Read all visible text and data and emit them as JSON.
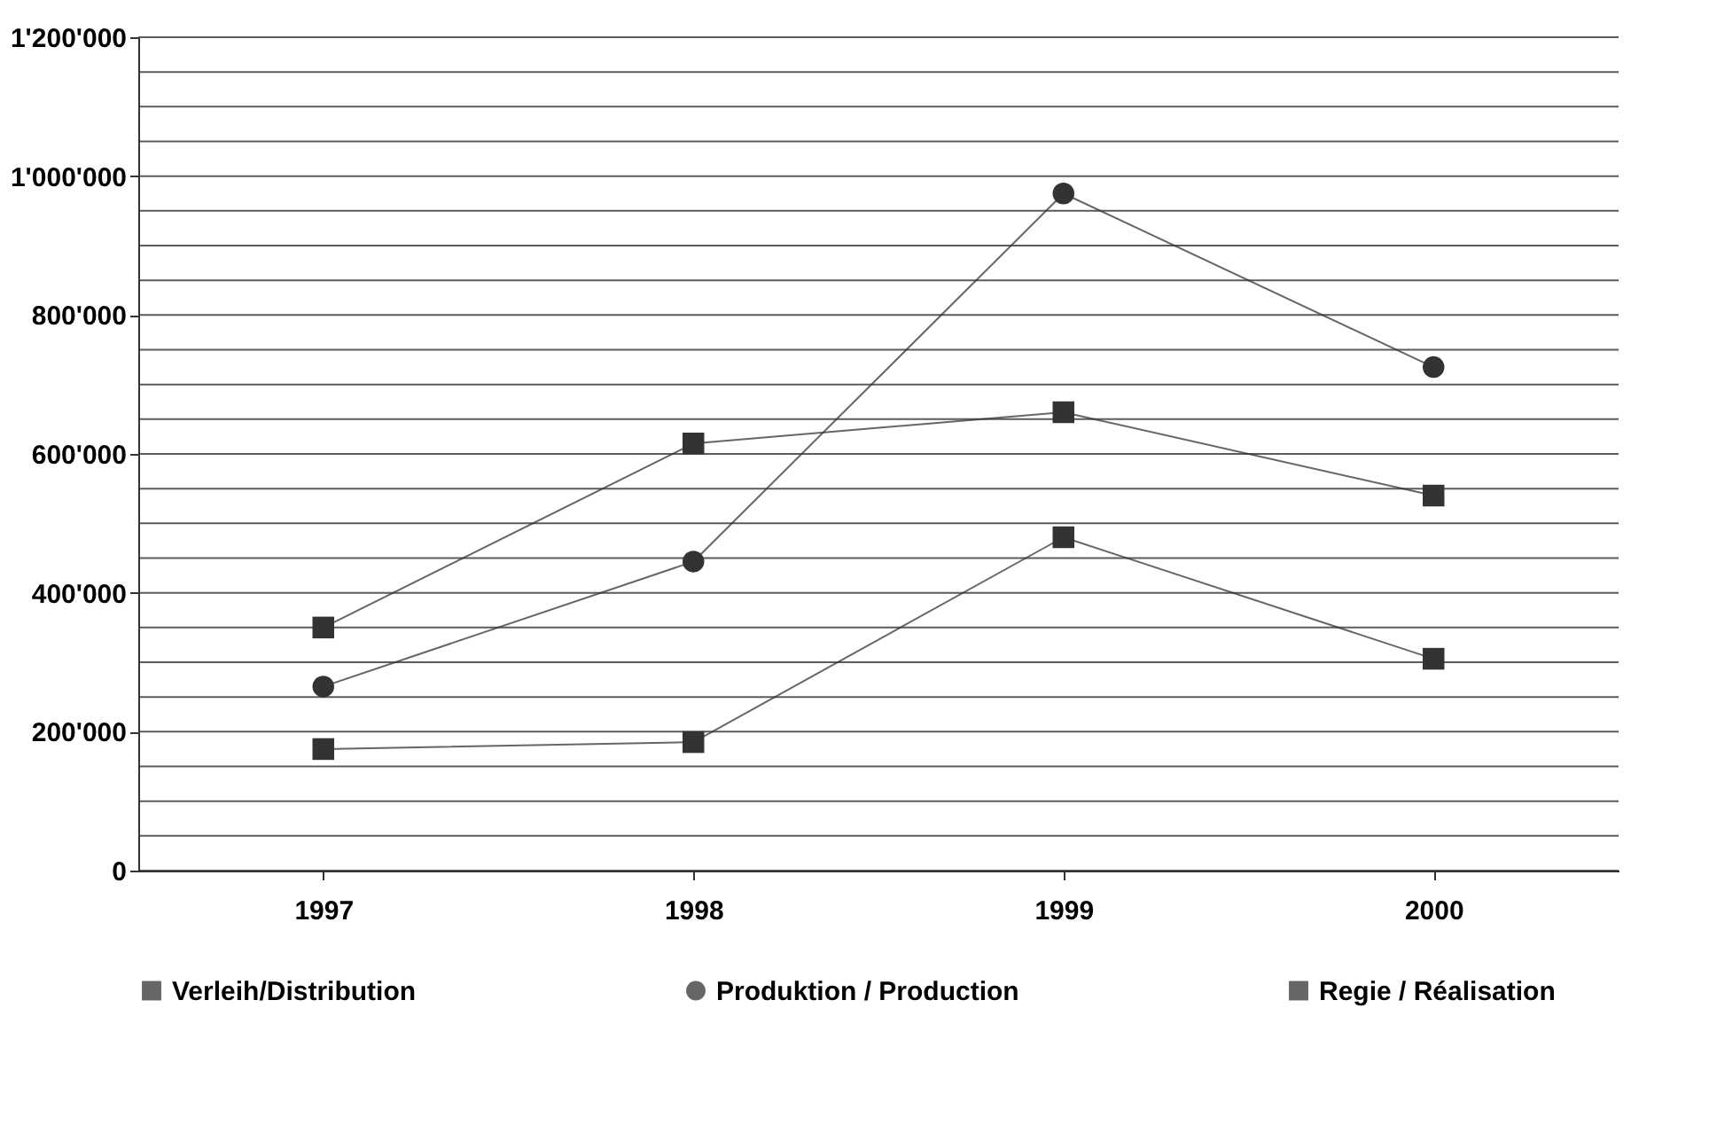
{
  "chart_data": {
    "type": "line",
    "categories": [
      "1997",
      "1998",
      "1999",
      "2000"
    ],
    "series": [
      {
        "name": "Verleih/Distribution",
        "color": "#333333",
        "marker": "square",
        "values": [
          350000,
          615000,
          660000,
          540000
        ]
      },
      {
        "name": "Produktion / Production",
        "color": "#333333",
        "marker": "circle",
        "values": [
          265000,
          445000,
          975000,
          725000
        ]
      },
      {
        "name": "Regie / Réalisation",
        "color": "#333333",
        "marker": "square",
        "values": [
          175000,
          185000,
          480000,
          305000
        ]
      }
    ],
    "ylim": [
      0,
      1200000
    ],
    "yticks": [
      0,
      {
        "value": 50000,
        "label": null
      },
      {
        "value": 100000,
        "label": null
      },
      {
        "value": 150000,
        "label": null
      },
      {
        "value": 200000,
        "label": "200'000"
      },
      {
        "value": 250000,
        "label": null
      },
      {
        "value": 300000,
        "label": null
      },
      {
        "value": 350000,
        "label": null
      },
      {
        "value": 400000,
        "label": "400'000"
      },
      {
        "value": 450000,
        "label": null
      },
      {
        "value": 500000,
        "label": null
      },
      {
        "value": 550000,
        "label": null
      },
      {
        "value": 600000,
        "label": "600'000"
      },
      {
        "value": 650000,
        "label": null
      },
      {
        "value": 700000,
        "label": null
      },
      {
        "value": 750000,
        "label": null
      },
      {
        "value": 800000,
        "label": "800'000"
      },
      {
        "value": 850000,
        "label": null
      },
      {
        "value": 900000,
        "label": null
      },
      {
        "value": 950000,
        "label": null
      },
      {
        "value": 1000000,
        "label": "1'000'000"
      },
      {
        "value": 1050000,
        "label": null
      },
      {
        "value": 1100000,
        "label": null
      },
      {
        "value": 1150000,
        "label": null
      },
      {
        "value": 1200000,
        "label": "1'200'000"
      }
    ],
    "grid": "y",
    "legend": "bottom",
    "line_style": "solid"
  }
}
